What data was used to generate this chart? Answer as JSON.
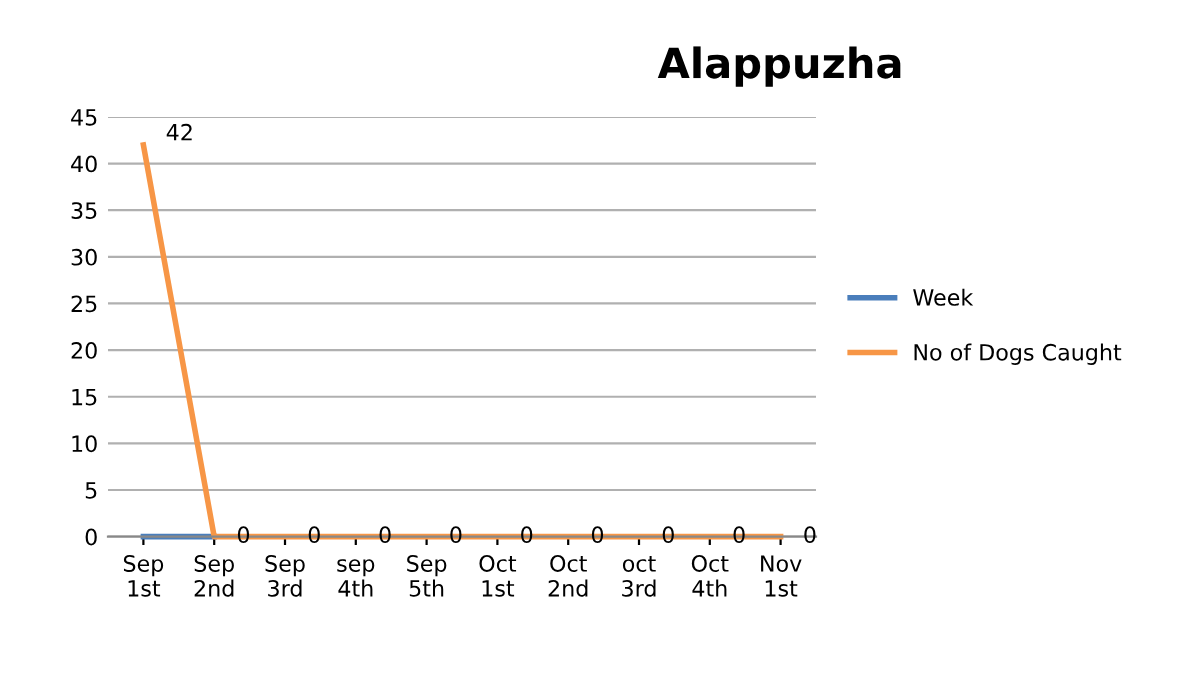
{
  "chart_data": {
    "type": "line",
    "title": "Alappuzha",
    "categories": [
      "Sep\n1st",
      "Sep\n2nd",
      "Sep\n3rd",
      "sep\n4th",
      "Sep\n5th",
      "Oct\n1st",
      "Oct\n2nd",
      "oct\n3rd",
      "Oct\n4th",
      "Nov\n1st"
    ],
    "series": [
      {
        "name": "Week",
        "color": "#4a7ebb",
        "values": [
          0,
          0,
          null,
          null,
          null,
          null,
          null,
          null,
          null,
          null
        ]
      },
      {
        "name": "No of Dogs Caught",
        "color": "#f79646",
        "values": [
          42,
          0,
          0,
          0,
          0,
          0,
          0,
          0,
          0,
          0
        ],
        "value_labels": [
          "42",
          "0",
          "0",
          "0",
          "0",
          "0",
          "0",
          "0",
          "0",
          "0"
        ]
      }
    ],
    "ylim": [
      0,
      45
    ],
    "yticks": [
      0,
      5,
      10,
      15,
      20,
      25,
      30,
      35,
      40,
      45
    ],
    "grid": "y",
    "legend": "right",
    "marker": "none",
    "line_style": "solid"
  }
}
